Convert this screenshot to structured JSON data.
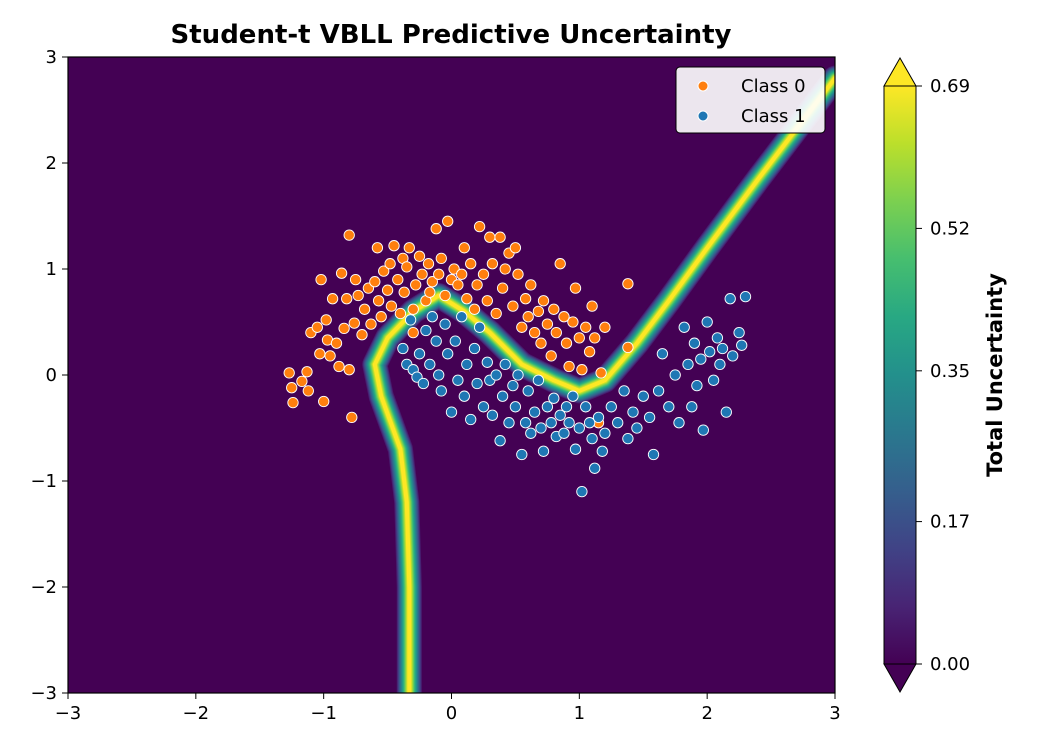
{
  "chart_data": {
    "type": "scatter",
    "title": "Student-t VBLL Predictive Uncertainty",
    "xlim": [
      -3,
      3
    ],
    "ylim": [
      -3,
      3
    ],
    "xticks": [
      -3,
      -2,
      -1,
      0,
      1,
      2,
      3
    ],
    "yticks": [
      -3,
      -2,
      -1,
      0,
      1,
      2,
      3
    ],
    "grid": false,
    "legend": {
      "placement": "top-right"
    },
    "background": {
      "type": "contourf",
      "colormap": "viridis",
      "range": [
        0.0,
        0.69
      ],
      "ridge_width": 0.09,
      "boundary": [
        [
          -0.33,
          -3.0
        ],
        [
          -0.33,
          -2.0
        ],
        [
          -0.35,
          -1.2
        ],
        [
          -0.4,
          -0.7
        ],
        [
          -0.55,
          -0.2
        ],
        [
          -0.6,
          0.1
        ],
        [
          -0.5,
          0.35
        ],
        [
          -0.3,
          0.6
        ],
        [
          -0.1,
          0.75
        ],
        [
          0.1,
          0.6
        ],
        [
          0.3,
          0.4
        ],
        [
          0.55,
          0.1
        ],
        [
          0.8,
          -0.05
        ],
        [
          1.0,
          -0.15
        ],
        [
          1.2,
          -0.05
        ],
        [
          1.45,
          0.3
        ],
        [
          1.7,
          0.7
        ],
        [
          2.0,
          1.2
        ],
        [
          2.4,
          1.85
        ],
        [
          3.0,
          2.8
        ]
      ]
    },
    "colorbar": {
      "label": "Total Uncertainty",
      "ticks": [
        0.0,
        0.17,
        0.35,
        0.52,
        0.69
      ],
      "tick_labels": [
        "0.00",
        "0.17",
        "0.35",
        "0.52",
        "0.69"
      ],
      "extend": "both"
    },
    "series": [
      {
        "name": "Class 0",
        "color": "#ff7f0e",
        "points": [
          [
            -1.27,
            0.02
          ],
          [
            -1.25,
            -0.12
          ],
          [
            -1.24,
            -0.26
          ],
          [
            -1.17,
            -0.06
          ],
          [
            -1.13,
            0.03
          ],
          [
            -1.12,
            -0.15
          ],
          [
            -1.1,
            0.4
          ],
          [
            -1.05,
            0.45
          ],
          [
            -1.03,
            0.2
          ],
          [
            -1.02,
            0.9
          ],
          [
            -1.0,
            -0.25
          ],
          [
            -0.98,
            0.52
          ],
          [
            -0.97,
            0.33
          ],
          [
            -0.95,
            0.18
          ],
          [
            -0.93,
            0.72
          ],
          [
            -0.9,
            0.3
          ],
          [
            -0.88,
            0.08
          ],
          [
            -0.86,
            0.96
          ],
          [
            -0.84,
            0.44
          ],
          [
            -0.82,
            0.72
          ],
          [
            -0.8,
            1.32
          ],
          [
            -0.8,
            0.05
          ],
          [
            -0.78,
            -0.4
          ],
          [
            -0.76,
            0.49
          ],
          [
            -0.75,
            0.9
          ],
          [
            -0.73,
            0.75
          ],
          [
            -0.7,
            0.38
          ],
          [
            -0.68,
            0.62
          ],
          [
            -0.65,
            0.82
          ],
          [
            -0.63,
            0.48
          ],
          [
            -0.6,
            0.88
          ],
          [
            -0.58,
            1.2
          ],
          [
            -0.57,
            0.7
          ],
          [
            -0.55,
            0.55
          ],
          [
            -0.53,
            0.98
          ],
          [
            -0.5,
            0.8
          ],
          [
            -0.48,
            1.05
          ],
          [
            -0.47,
            0.65
          ],
          [
            -0.45,
            1.22
          ],
          [
            -0.42,
            0.9
          ],
          [
            -0.4,
            0.58
          ],
          [
            -0.38,
            1.1
          ],
          [
            -0.37,
            0.78
          ],
          [
            -0.35,
            1.02
          ],
          [
            -0.33,
            1.2
          ],
          [
            -0.3,
            0.62
          ],
          [
            -0.3,
            0.4
          ],
          [
            -0.28,
            0.85
          ],
          [
            -0.25,
            1.12
          ],
          [
            -0.23,
            0.95
          ],
          [
            -0.2,
            0.7
          ],
          [
            -0.18,
            1.05
          ],
          [
            -0.17,
            0.78
          ],
          [
            -0.15,
            0.88
          ],
          [
            -0.12,
            1.38
          ],
          [
            -0.1,
            0.95
          ],
          [
            -0.08,
            1.1
          ],
          [
            -0.05,
            0.75
          ],
          [
            -0.03,
            1.45
          ],
          [
            0.0,
            0.9
          ],
          [
            0.02,
            1.0
          ],
          [
            0.05,
            0.85
          ],
          [
            0.08,
            0.95
          ],
          [
            0.1,
            1.2
          ],
          [
            0.12,
            0.72
          ],
          [
            0.15,
            1.05
          ],
          [
            0.18,
            0.62
          ],
          [
            0.2,
            0.85
          ],
          [
            0.22,
            1.4
          ],
          [
            0.25,
            0.95
          ],
          [
            0.28,
            0.7
          ],
          [
            0.3,
            1.3
          ],
          [
            0.32,
            1.05
          ],
          [
            0.35,
            0.58
          ],
          [
            0.38,
            1.3
          ],
          [
            0.4,
            0.82
          ],
          [
            0.42,
            1.0
          ],
          [
            0.45,
            1.15
          ],
          [
            0.48,
            0.65
          ],
          [
            0.5,
            1.2
          ],
          [
            0.52,
            0.95
          ],
          [
            0.55,
            0.45
          ],
          [
            0.58,
            0.72
          ],
          [
            0.6,
            0.55
          ],
          [
            0.62,
            0.85
          ],
          [
            0.65,
            0.4
          ],
          [
            0.68,
            0.6
          ],
          [
            0.7,
            0.3
          ],
          [
            0.72,
            0.7
          ],
          [
            0.75,
            0.48
          ],
          [
            0.78,
            0.18
          ],
          [
            0.8,
            0.62
          ],
          [
            0.82,
            0.4
          ],
          [
            0.85,
            1.05
          ],
          [
            0.88,
            0.55
          ],
          [
            0.9,
            0.3
          ],
          [
            0.92,
            0.08
          ],
          [
            0.95,
            0.5
          ],
          [
            0.97,
            0.82
          ],
          [
            1.0,
            0.35
          ],
          [
            1.02,
            0.05
          ],
          [
            1.05,
            0.45
          ],
          [
            1.08,
            0.22
          ],
          [
            1.1,
            0.65
          ],
          [
            1.12,
            0.35
          ],
          [
            1.15,
            -0.45
          ],
          [
            1.17,
            0.02
          ],
          [
            1.2,
            0.45
          ],
          [
            1.38,
            0.26
          ],
          [
            1.38,
            0.86
          ]
        ]
      },
      {
        "name": "Class 1",
        "color": "#1f77b4",
        "points": [
          [
            -0.38,
            0.25
          ],
          [
            -0.35,
            0.1
          ],
          [
            -0.32,
            0.52
          ],
          [
            -0.3,
            0.05
          ],
          [
            -0.27,
            -0.02
          ],
          [
            -0.25,
            0.2
          ],
          [
            -0.22,
            -0.08
          ],
          [
            -0.2,
            0.42
          ],
          [
            -0.17,
            0.1
          ],
          [
            -0.15,
            0.55
          ],
          [
            -0.12,
            0.32
          ],
          [
            -0.1,
            0.0
          ],
          [
            -0.08,
            -0.15
          ],
          [
            -0.05,
            0.48
          ],
          [
            -0.03,
            0.2
          ],
          [
            0.0,
            -0.35
          ],
          [
            0.03,
            0.32
          ],
          [
            0.05,
            -0.05
          ],
          [
            0.08,
            0.55
          ],
          [
            0.1,
            -0.2
          ],
          [
            0.12,
            0.1
          ],
          [
            0.15,
            -0.42
          ],
          [
            0.18,
            0.25
          ],
          [
            0.2,
            -0.08
          ],
          [
            0.22,
            0.45
          ],
          [
            0.25,
            -0.3
          ],
          [
            0.28,
            0.12
          ],
          [
            0.3,
            -0.05
          ],
          [
            0.32,
            -0.38
          ],
          [
            0.35,
            0.0
          ],
          [
            0.38,
            -0.62
          ],
          [
            0.4,
            -0.2
          ],
          [
            0.42,
            0.1
          ],
          [
            0.45,
            -0.45
          ],
          [
            0.48,
            -0.1
          ],
          [
            0.5,
            -0.3
          ],
          [
            0.52,
            0.0
          ],
          [
            0.55,
            -0.75
          ],
          [
            0.58,
            -0.45
          ],
          [
            0.6,
            -0.15
          ],
          [
            0.62,
            -0.55
          ],
          [
            0.65,
            -0.35
          ],
          [
            0.68,
            -0.05
          ],
          [
            0.7,
            -0.5
          ],
          [
            0.72,
            -0.72
          ],
          [
            0.75,
            -0.3
          ],
          [
            0.78,
            -0.45
          ],
          [
            0.8,
            -0.22
          ],
          [
            0.82,
            -0.58
          ],
          [
            0.85,
            -0.38
          ],
          [
            0.88,
            -0.55
          ],
          [
            0.9,
            -0.3
          ],
          [
            0.92,
            -0.45
          ],
          [
            0.95,
            -0.2
          ],
          [
            0.97,
            -0.7
          ],
          [
            1.0,
            -0.5
          ],
          [
            1.02,
            -1.1
          ],
          [
            1.05,
            -0.3
          ],
          [
            1.08,
            -0.45
          ],
          [
            1.1,
            -0.6
          ],
          [
            1.12,
            -0.88
          ],
          [
            1.15,
            -0.4
          ],
          [
            1.18,
            -0.72
          ],
          [
            1.2,
            -0.55
          ],
          [
            1.25,
            -0.3
          ],
          [
            1.3,
            -0.45
          ],
          [
            1.35,
            -0.15
          ],
          [
            1.38,
            -0.6
          ],
          [
            1.42,
            -0.35
          ],
          [
            1.45,
            -0.5
          ],
          [
            1.5,
            -0.2
          ],
          [
            1.55,
            -0.4
          ],
          [
            1.58,
            -0.75
          ],
          [
            1.62,
            -0.15
          ],
          [
            1.65,
            0.2
          ],
          [
            1.7,
            -0.3
          ],
          [
            1.75,
            0.0
          ],
          [
            1.78,
            -0.45
          ],
          [
            1.82,
            0.45
          ],
          [
            1.85,
            0.1
          ],
          [
            1.88,
            -0.3
          ],
          [
            1.9,
            0.3
          ],
          [
            1.92,
            -0.1
          ],
          [
            1.95,
            0.15
          ],
          [
            1.97,
            -0.52
          ],
          [
            2.0,
            0.5
          ],
          [
            2.02,
            0.22
          ],
          [
            2.05,
            -0.05
          ],
          [
            2.08,
            0.35
          ],
          [
            2.1,
            0.1
          ],
          [
            2.12,
            0.25
          ],
          [
            2.15,
            -0.35
          ],
          [
            2.18,
            0.72
          ],
          [
            2.2,
            0.18
          ],
          [
            2.25,
            0.4
          ],
          [
            2.27,
            0.28
          ],
          [
            2.3,
            0.74
          ]
        ]
      }
    ]
  }
}
